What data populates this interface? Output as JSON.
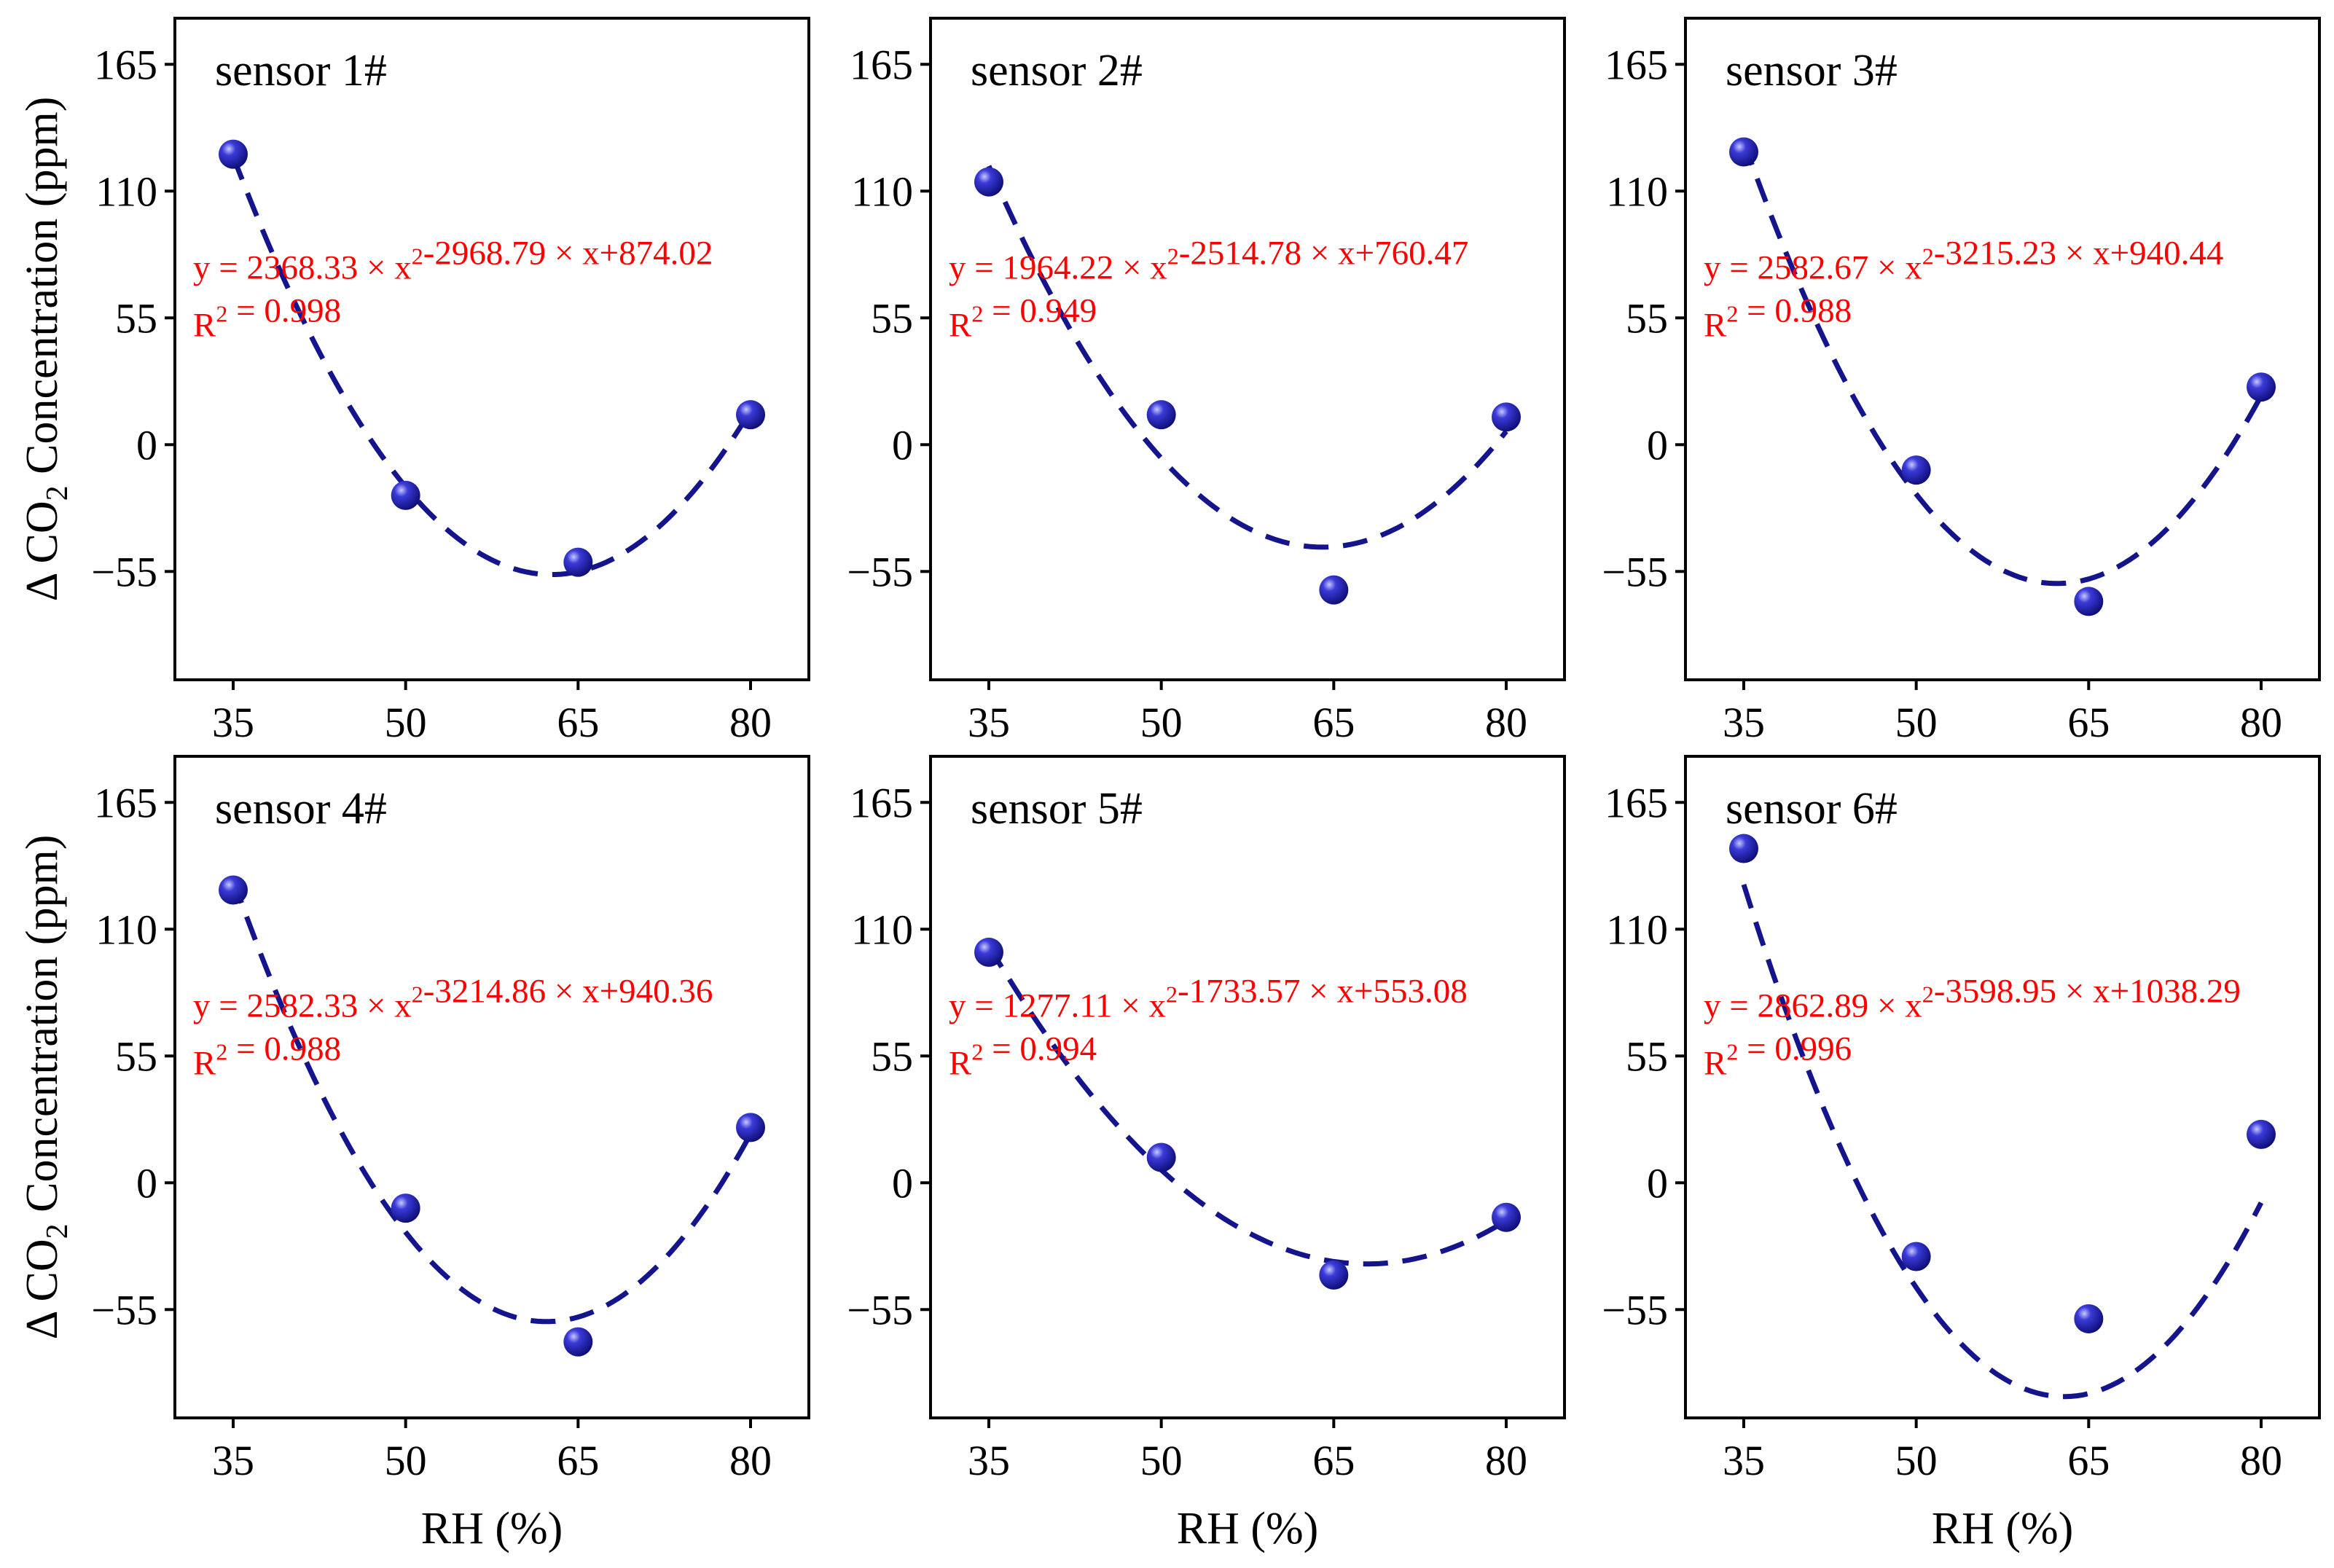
{
  "chart_data": [
    {
      "type": "scatter",
      "title": "sensor 1#",
      "xlabel": "",
      "ylabel": "Δ CO2 Concentration (ppm)",
      "x": [
        35,
        50,
        65,
        80
      ],
      "y": [
        126,
        -22,
        -51,
        13
      ],
      "xticks": [
        "35",
        "50",
        "65",
        "80"
      ],
      "yticks": [
        "165",
        "110",
        "55",
        "0",
        "−55"
      ],
      "ylim": [
        -102,
        185
      ],
      "fit": {
        "a": 2368.33,
        "b": -2968.79,
        "c": 874.02
      },
      "equation": "y = 2368.33 × x2-2968.79 × x+874.02",
      "r2": "R2 = 0.998"
    },
    {
      "type": "scatter",
      "title": "sensor 2#",
      "xlabel": "",
      "ylabel": "",
      "x": [
        35,
        50,
        65,
        80
      ],
      "y": [
        114,
        13,
        -63,
        12
      ],
      "xticks": [
        "35",
        "50",
        "65",
        "80"
      ],
      "yticks": [
        "165",
        "110",
        "55",
        "0",
        "−55"
      ],
      "ylim": [
        -102,
        185
      ],
      "fit": {
        "a": 1964.22,
        "b": -2514.78,
        "c": 760.47
      },
      "equation": "y = 1964.22 × x2-2514.78 × x+760.47",
      "r2": "R2 = 0.949"
    },
    {
      "type": "scatter",
      "title": "sensor 3#",
      "xlabel": "",
      "ylabel": "",
      "x": [
        35,
        50,
        65,
        80
      ],
      "y": [
        127,
        -11,
        -68,
        25
      ],
      "xticks": [
        "35",
        "50",
        "65",
        "80"
      ],
      "yticks": [
        "165",
        "110",
        "55",
        "0",
        "−55"
      ],
      "ylim": [
        -102,
        185
      ],
      "fit": {
        "a": 2582.67,
        "b": -3215.23,
        "c": 940.44
      },
      "equation": "y = 2582.67 × x2-3215.23 × x+940.44",
      "r2": "R2 = 0.988"
    },
    {
      "type": "scatter",
      "title": "sensor 4#",
      "xlabel": "",
      "ylabel": "Δ CO2 Concentration (ppm)",
      "x": [
        35,
        50,
        65,
        80
      ],
      "y": [
        127,
        -11,
        -69,
        24
      ],
      "xticks": [
        "35",
        "50",
        "65",
        "80"
      ],
      "yticks": [
        "165",
        "110",
        "55",
        "0",
        "−55"
      ],
      "ylim": [
        -102,
        185
      ],
      "fit": {
        "a": 2582.33,
        "b": -3214.86,
        "c": 940.36
      },
      "equation": "y = 2582.33 × x2-3214.86 × x+940.36",
      "r2": "R2 = 0.988"
    },
    {
      "type": "scatter",
      "title": "sensor 5#",
      "xlabel": "RH (%)",
      "ylabel": "",
      "x": [
        35,
        50,
        65,
        80
      ],
      "y": [
        100,
        11,
        -40,
        -15
      ],
      "xticks": [
        "35",
        "50",
        "65",
        "80"
      ],
      "yticks": [
        "165",
        "110",
        "55",
        "0",
        "−55"
      ],
      "ylim": [
        -102,
        185
      ],
      "fit": {
        "a": 1277.11,
        "b": -1733.57,
        "c": 553.08
      },
      "equation": "y = 1277.11 × x2-1733.57 × x+553.08",
      "r2": "R2 = 0.994"
    },
    {
      "type": "scatter",
      "title": "sensor 6#",
      "xlabel": "RH (%)",
      "ylabel": "",
      "x": [
        35,
        50,
        65,
        80
      ],
      "y": [
        145,
        -32,
        -59,
        21
      ],
      "xticks": [
        "35",
        "50",
        "65",
        "80"
      ],
      "yticks": [
        "165",
        "110",
        "55",
        "0",
        "−55"
      ],
      "ylim": [
        -102,
        185
      ],
      "fit": {
        "a": 2862.89,
        "b": -3598.95,
        "c": 1038.29
      },
      "equation": "y = 2862.89 × x2-3598.95 × x+1038.29",
      "r2": "R2 = 0.996"
    }
  ],
  "colors": {
    "marker": "#1a1aa8",
    "fit_line": "#14148c",
    "equation": "#ff0000"
  },
  "xaxis_label": "RH (%)"
}
